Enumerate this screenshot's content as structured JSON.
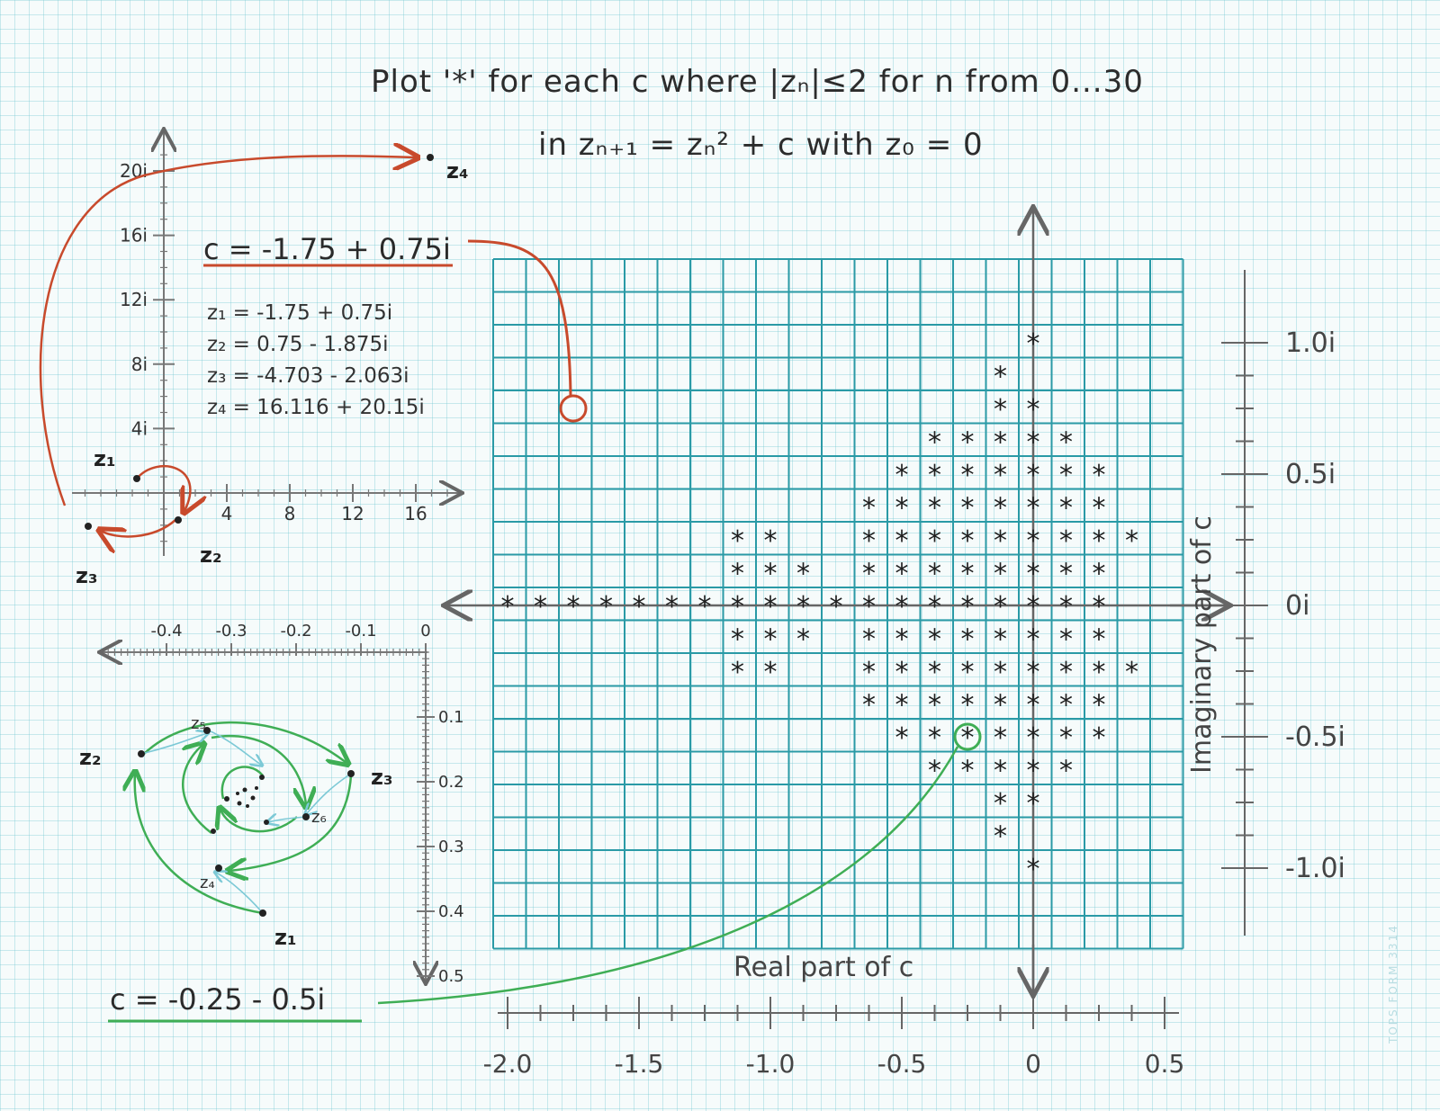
{
  "title": {
    "line1": "Plot '*' for each c where |zₙ|≤2 for n from 0...30",
    "line2": "in zₙ₊₁ = zₙ² + c  with z₀ = 0"
  },
  "red_example": {
    "c_label": "c = -1.75 + 0.75i",
    "iterates": [
      "z₁ = -1.75 + 0.75i",
      "z₂ = 0.75 - 1.875i",
      "z₃ = -4.703 - 2.063i",
      "z₄ = 16.116 + 20.15i"
    ],
    "x_ticks": [
      "4",
      "8",
      "12",
      "16"
    ],
    "y_ticks": [
      "20i",
      "16i",
      "12i",
      "8i",
      "4i"
    ],
    "point_labels": [
      "z₁",
      "z₂",
      "z₃",
      "z₄"
    ]
  },
  "green_example": {
    "c_label": "c = -0.25 - 0.5i",
    "x_ticks": [
      "-0.4",
      "-0.3",
      "-0.2",
      "-0.1",
      "0"
    ],
    "y_ticks": [
      "0.1",
      "0.2",
      "0.3",
      "0.4",
      "0.5"
    ],
    "point_labels": [
      "z₁",
      "z₂",
      "z₃",
      "z₄",
      "z₅",
      "z₆"
    ]
  },
  "main_chart": {
    "xlabel": "Real part of c",
    "ylabel": "Imaginary part of c",
    "x_ticks": [
      "-2.0",
      "-1.5",
      "-1.0",
      "-0.5",
      "0",
      "0.5"
    ],
    "y_ticks": [
      "1.0i",
      "0.5i",
      "0i",
      "-0.5i",
      "-1.0i"
    ]
  },
  "chart_data": {
    "type": "scatter",
    "marker": "*",
    "xlim": [
      -2.0,
      0.5
    ],
    "ylim": [
      -1.0,
      1.0
    ],
    "step": 0.125,
    "xlabel": "Real part of c",
    "ylabel": "Imaginary part of c",
    "rows": [
      {
        "y": 1.0,
        "x": [
          0
        ]
      },
      {
        "y": 0.875,
        "x": [
          -0.125
        ]
      },
      {
        "y": 0.75,
        "x": [
          -0.125,
          0
        ]
      },
      {
        "y": 0.625,
        "x": [
          -0.375,
          -0.25,
          -0.125,
          0,
          0.125
        ]
      },
      {
        "y": 0.5,
        "x": [
          -0.5,
          -0.375,
          -0.25,
          -0.125,
          0,
          0.125,
          0.25
        ]
      },
      {
        "y": 0.375,
        "x": [
          -0.625,
          -0.5,
          -0.375,
          -0.25,
          -0.125,
          0,
          0.125,
          0.25
        ]
      },
      {
        "y": 0.25,
        "x": [
          -1.125,
          -1.0,
          -0.625,
          -0.5,
          -0.375,
          -0.25,
          -0.125,
          0,
          0.125,
          0.25,
          0.375
        ]
      },
      {
        "y": 0.125,
        "x": [
          -1.125,
          -1.0,
          -0.875,
          -0.625,
          -0.5,
          -0.375,
          -0.25,
          -0.125,
          0,
          0.125,
          0.25
        ]
      },
      {
        "y": 0.0,
        "x": [
          -2.0,
          -1.875,
          -1.75,
          -1.625,
          -1.5,
          -1.375,
          -1.25,
          -1.125,
          -1.0,
          -0.875,
          -0.75,
          -0.625,
          -0.5,
          -0.375,
          -0.25,
          -0.125,
          0,
          0.125,
          0.25
        ]
      },
      {
        "y": -0.125,
        "x": [
          -1.125,
          -1.0,
          -0.875,
          -0.625,
          -0.5,
          -0.375,
          -0.25,
          -0.125,
          0,
          0.125,
          0.25
        ]
      },
      {
        "y": -0.25,
        "x": [
          -1.125,
          -1.0,
          -0.625,
          -0.5,
          -0.375,
          -0.25,
          -0.125,
          0,
          0.125,
          0.25,
          0.375
        ]
      },
      {
        "y": -0.375,
        "x": [
          -0.625,
          -0.5,
          -0.375,
          -0.25,
          -0.125,
          0,
          0.125,
          0.25
        ]
      },
      {
        "y": -0.5,
        "x": [
          -0.5,
          -0.375,
          -0.25,
          -0.125,
          0,
          0.125,
          0.25
        ]
      },
      {
        "y": -0.625,
        "x": [
          -0.375,
          -0.25,
          -0.125,
          0,
          0.125
        ]
      },
      {
        "y": -0.75,
        "x": [
          -0.125,
          0
        ]
      },
      {
        "y": -0.875,
        "x": [
          -0.125
        ]
      },
      {
        "y": -1.0,
        "x": [
          0
        ]
      }
    ],
    "highlight_red": {
      "x": -1.75,
      "y": 0.75
    },
    "highlight_green": {
      "x": -0.25,
      "y": -0.5
    }
  },
  "form_mark": "TOPS FORM 3314",
  "colors": {
    "grid": "#2a9aa6",
    "red": "#c84a2c",
    "green": "#3fae55",
    "axis": "#666666"
  }
}
